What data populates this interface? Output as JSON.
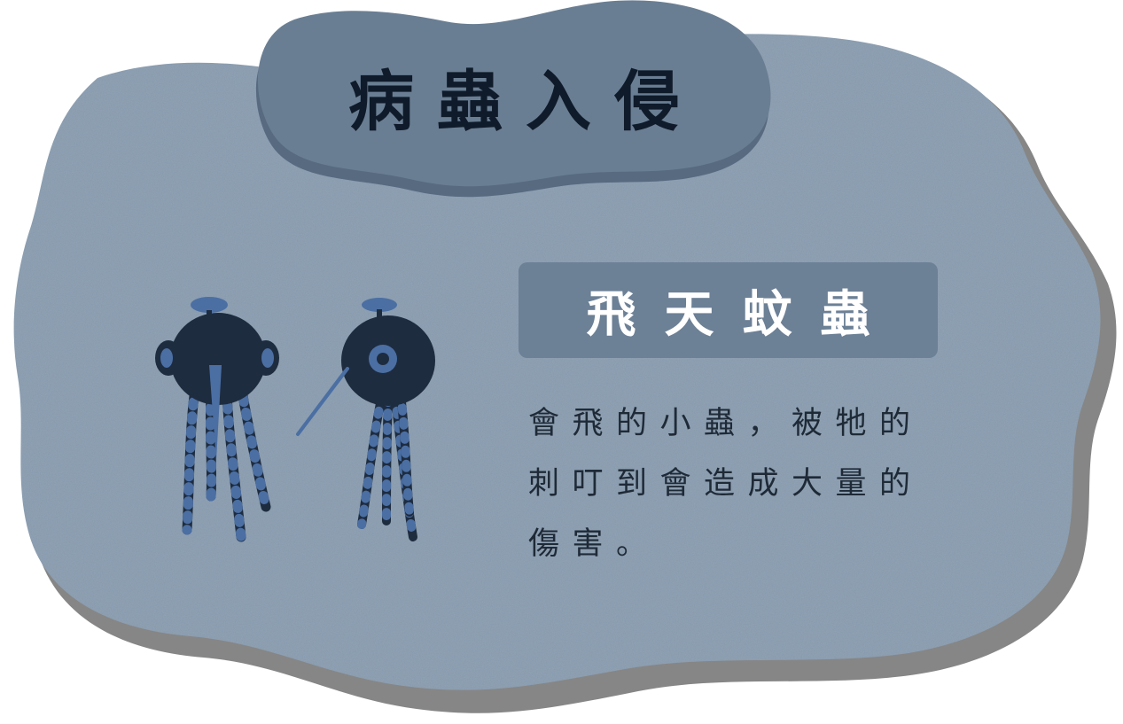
{
  "title": "病蟲入侵",
  "creature": {
    "name": "飛天蚊蟲",
    "description_lines": [
      "會飛的小蟲，被牠的",
      "刺叮到會造成大量的",
      "傷害。"
    ]
  },
  "colors": {
    "card_fill": "#8699ac",
    "card_shadow": "#868686",
    "title_plate": "#6a7e93",
    "title_plate_shadow": "#576a80",
    "name_box": "#6c8096",
    "creature_body": "#1e2c3f",
    "creature_accent": "#4b6fa3",
    "title_text": "#0f1b2a",
    "name_text": "#ffffff",
    "description_text": "#1f2a37"
  }
}
